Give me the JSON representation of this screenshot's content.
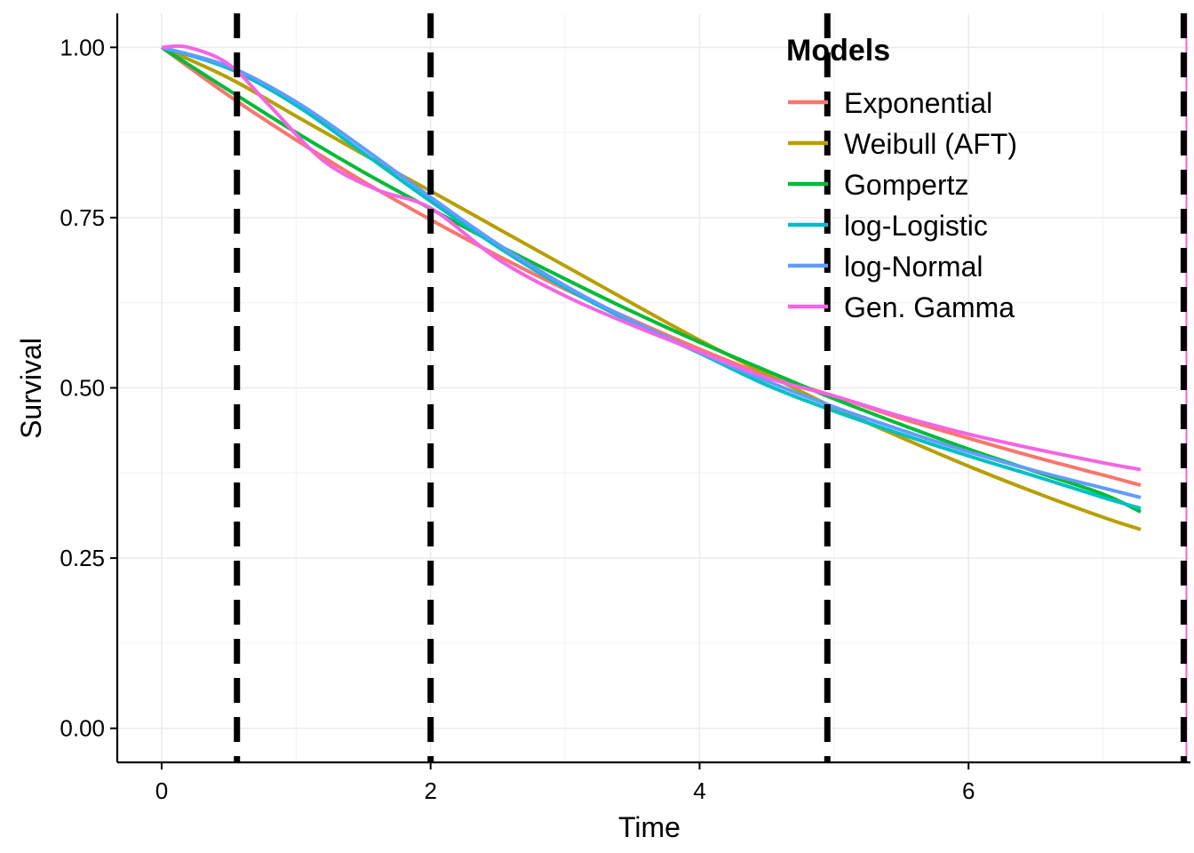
{
  "chart_data": {
    "type": "line",
    "xlabel": "Time",
    "ylabel": "Survival",
    "xlim": [
      -0.33,
      7.65
    ],
    "ylim": [
      -0.05,
      1.05
    ],
    "x_ticks": [
      0,
      2,
      4,
      6
    ],
    "x_tick_labels": [
      "0",
      "2",
      "4",
      "6"
    ],
    "y_ticks": [
      0,
      0.25,
      0.5,
      0.75,
      1
    ],
    "y_tick_labels": [
      "0.00",
      "0.25",
      "0.50",
      "0.75",
      "1.00"
    ],
    "grid": true,
    "legend": {
      "title": "Models",
      "position": "top-right"
    },
    "vlines": [
      {
        "x": 0.56,
        "style": "dashed",
        "color": "#000000"
      },
      {
        "x": 2.0,
        "style": "dashed",
        "color": "#000000"
      },
      {
        "x": 4.95,
        "style": "dashed",
        "color": "#000000"
      },
      {
        "x": 7.6,
        "style": "dashed",
        "color": "#000000"
      }
    ],
    "edge_line": {
      "x": 7.62,
      "color": "#F564E3"
    },
    "series": [
      {
        "name": "Exponential",
        "color": "#F8766D",
        "x": [
          0,
          0.5,
          1,
          1.5,
          2,
          2.5,
          3,
          3.5,
          4,
          4.5,
          5,
          5.5,
          6,
          6.5,
          7,
          7.28
        ],
        "y": [
          1.0,
          0.929,
          0.864,
          0.803,
          0.747,
          0.694,
          0.645,
          0.6,
          0.557,
          0.518,
          0.488,
          0.455,
          0.426,
          0.398,
          0.372,
          0.357
        ]
      },
      {
        "name": "Weibull (AFT)",
        "color": "#B79F00",
        "x": [
          0,
          0.5,
          1,
          1.5,
          2,
          2.5,
          3,
          3.5,
          4,
          4.5,
          5,
          5.5,
          6,
          6.5,
          7,
          7.28
        ],
        "y": [
          1.0,
          0.955,
          0.899,
          0.843,
          0.789,
          0.734,
          0.679,
          0.624,
          0.57,
          0.52,
          0.471,
          0.427,
          0.385,
          0.346,
          0.31,
          0.292
        ]
      },
      {
        "name": "Gompertz",
        "color": "#00BA38",
        "x": [
          0,
          0.5,
          1,
          1.5,
          2,
          2.5,
          3,
          3.5,
          4,
          4.5,
          5,
          5.5,
          6,
          6.5,
          7,
          7.28
        ],
        "y": [
          1.0,
          0.937,
          0.875,
          0.817,
          0.763,
          0.71,
          0.66,
          0.612,
          0.567,
          0.525,
          0.484,
          0.446,
          0.41,
          0.377,
          0.344,
          0.318
        ]
      },
      {
        "name": "log-Logistic",
        "color": "#00BFC4",
        "x": [
          0,
          0.5,
          1,
          1.5,
          2,
          2.5,
          3,
          3.5,
          4,
          4.5,
          5,
          5.5,
          6,
          6.5,
          7,
          7.28
        ],
        "y": [
          1.0,
          0.969,
          0.915,
          0.845,
          0.774,
          0.707,
          0.647,
          0.596,
          0.551,
          0.504,
          0.466,
          0.432,
          0.4,
          0.37,
          0.339,
          0.323
        ]
      },
      {
        "name": "log-Normal",
        "color": "#619CFF",
        "x": [
          0,
          0.5,
          1,
          1.5,
          2,
          2.5,
          3,
          3.5,
          4,
          4.5,
          5,
          5.5,
          6,
          6.5,
          7,
          7.28
        ],
        "y": [
          1.0,
          0.972,
          0.92,
          0.852,
          0.78,
          0.711,
          0.65,
          0.598,
          0.552,
          0.51,
          0.472,
          0.438,
          0.406,
          0.378,
          0.353,
          0.339
        ]
      },
      {
        "name": "Gen. Gamma",
        "color": "#F564E3",
        "x": [
          0,
          0.2,
          0.5,
          0.8,
          1.2,
          1.6,
          2,
          2.5,
          3,
          3.5,
          4,
          4.5,
          5,
          5.5,
          6,
          6.5,
          7,
          7.28
        ],
        "y": [
          1.0,
          1.0,
          0.975,
          0.915,
          0.834,
          0.791,
          0.764,
          0.689,
          0.635,
          0.592,
          0.553,
          0.515,
          0.488,
          0.458,
          0.432,
          0.41,
          0.39,
          0.38
        ]
      }
    ]
  }
}
